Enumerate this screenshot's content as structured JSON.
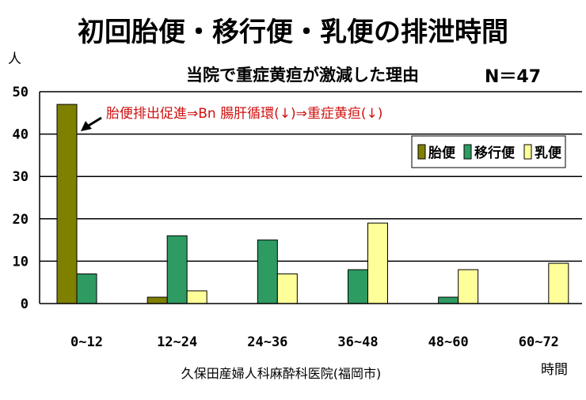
{
  "chart_data": {
    "type": "bar",
    "title": "初回胎便・移行便・乳便の排泄時間",
    "subtitle": "当院で重症黄疸が激減した理由",
    "n_label": "N＝47",
    "ylabel": "人",
    "xlabel": "時間",
    "source": "久保田産婦人科麻酔科医院(福岡市)",
    "annotation": "胎便排出促進⇒Bn 腸肝循環(↓)⇒重症黄疸(↓)",
    "categories": [
      "0~12",
      "12~24",
      "24~36",
      "36~48",
      "48~60",
      "60~72"
    ],
    "series": [
      {
        "name": "胎便",
        "color": "#808000",
        "values": [
          47,
          1.5,
          0,
          0,
          0,
          0
        ]
      },
      {
        "name": "移行便",
        "color": "#2e9b62",
        "values": [
          7,
          16,
          15,
          8,
          1.5,
          0
        ]
      },
      {
        "name": "乳便",
        "color": "#ffff99",
        "values": [
          0,
          3,
          7,
          19,
          8,
          9.5
        ]
      }
    ],
    "ylim": [
      0,
      50
    ],
    "yticks": [
      0,
      10,
      20,
      30,
      40,
      50
    ],
    "grid": true,
    "legend": "top-right"
  }
}
